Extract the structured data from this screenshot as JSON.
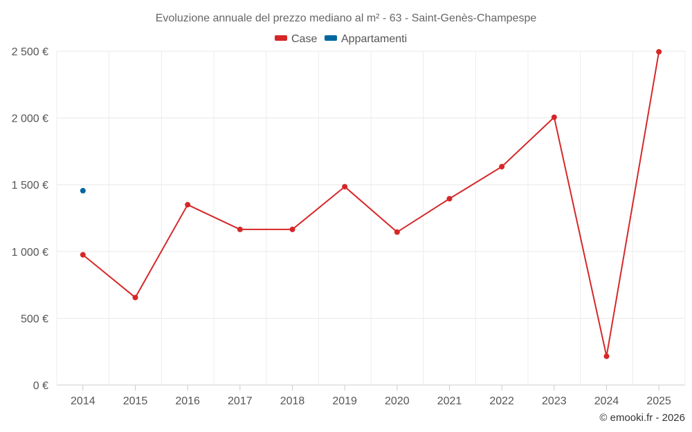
{
  "chart_data": {
    "type": "line",
    "title": "Evoluzione annuale del prezzo mediano al m² - 63 - Saint-Genès-Champespe",
    "categories": [
      "2014",
      "2015",
      "2016",
      "2017",
      "2018",
      "2019",
      "2020",
      "2021",
      "2022",
      "2023",
      "2024",
      "2025"
    ],
    "series": [
      {
        "name": "Case",
        "color": "#d62728",
        "values": [
          975,
          655,
          1350,
          1165,
          1165,
          1485,
          1145,
          1395,
          1635,
          2005,
          215,
          2495
        ]
      },
      {
        "name": "Appartamenti",
        "color": "#00679f",
        "values": [
          1455,
          null,
          null,
          null,
          null,
          null,
          null,
          null,
          null,
          null,
          null,
          null
        ]
      }
    ],
    "y_ticks": [
      "0 €",
      "500 €",
      "1 000 €",
      "1 500 €",
      "2 000 €",
      "2 500 €"
    ],
    "y_tick_values": [
      0,
      500,
      1000,
      1500,
      2000,
      2500
    ],
    "ylim": [
      0,
      2500
    ],
    "grid": true,
    "legend_position": "top-center"
  },
  "credit": "© emooki.fr - 2026"
}
